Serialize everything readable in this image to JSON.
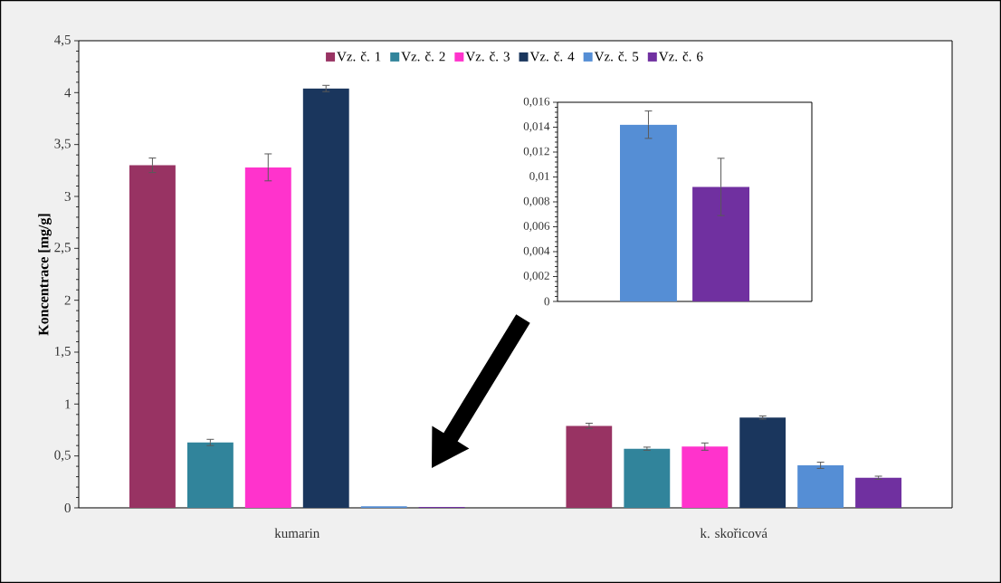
{
  "chart_data": [
    {
      "type": "bar",
      "categories": [
        "kumarin",
        "k. skořicová"
      ],
      "ylabel": "Koncentrace [mg/g]",
      "legend": "top",
      "ylim": [
        0,
        4.5
      ],
      "yticks": [
        0,
        {
          "value": 0.5,
          "label": "0,5"
        },
        1,
        {
          "value": 1.5,
          "label": "1,5"
        },
        2,
        {
          "value": 2.5,
          "label": "2,5"
        },
        3,
        {
          "value": 3.5,
          "label": "3,5"
        },
        4,
        {
          "value": 4.5,
          "label": "4,5"
        }
      ],
      "series": [
        {
          "name": "Vz. č. 1",
          "color": "#983363",
          "values": [
            3.3,
            0.79
          ],
          "errors": [
            0.07,
            0.025
          ]
        },
        {
          "name": "Vz. č. 2",
          "color": "#31849b",
          "values": [
            0.63,
            0.57
          ],
          "errors": [
            0.03,
            0.015
          ]
        },
        {
          "name": "Vz. č. 3",
          "color": "#ff33cc",
          "values": [
            3.28,
            0.59
          ],
          "errors": [
            0.13,
            0.035
          ]
        },
        {
          "name": "Vz. č. 4",
          "color": "#1a365d",
          "values": [
            4.04,
            0.87
          ],
          "errors": [
            0.03,
            0.015
          ]
        },
        {
          "name": "Vz. č. 5",
          "color": "#558ed5",
          "values": [
            0.0142,
            0.41
          ],
          "errors": [
            null,
            0.03
          ]
        },
        {
          "name": "Vz. č. 6",
          "color": "#7030a0",
          "values": [
            0.0092,
            0.29
          ],
          "errors": [
            null,
            0.015
          ]
        }
      ]
    },
    {
      "type": "bar",
      "categories": [
        null
      ],
      "tick_labels": "y",
      "ylim": [
        0,
        0.016
      ],
      "yticks": [
        0,
        {
          "value": 0.002,
          "label": "0,002"
        },
        {
          "value": 0.004,
          "label": "0,004"
        },
        {
          "value": 0.006,
          "label": "0,006"
        },
        {
          "value": 0.008,
          "label": "0,008"
        },
        {
          "value": 0.01,
          "label": "0,01"
        },
        {
          "value": 0.012,
          "label": "0,012"
        },
        {
          "value": 0.014,
          "label": "0,014"
        },
        {
          "value": 0.016,
          "label": "0,016"
        }
      ],
      "series": [
        {
          "color": "#558ed5",
          "values": [
            0.0142
          ],
          "errors": [
            0.0011
          ]
        },
        {
          "color": "#7030a0",
          "values": [
            0.0092
          ],
          "errors": [
            0.0023
          ]
        }
      ]
    }
  ]
}
